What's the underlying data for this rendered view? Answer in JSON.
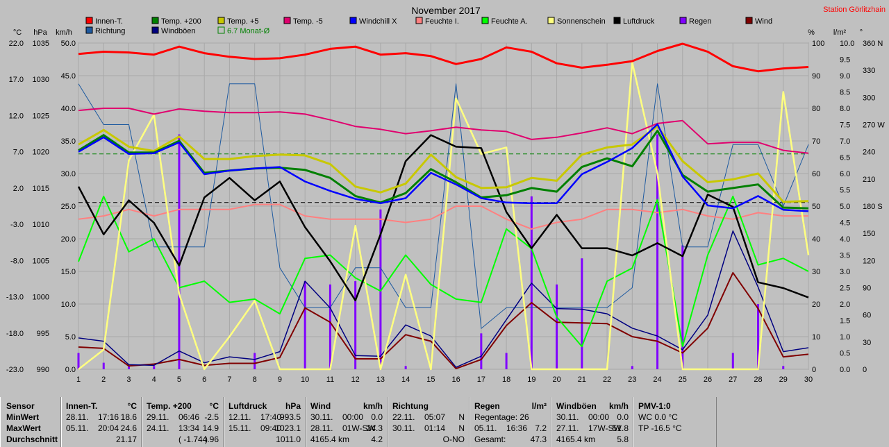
{
  "title": "November 2017",
  "station": "Station Görlitzhain",
  "left_axis_units": [
    "°C",
    "hPa",
    "km/h"
  ],
  "right_axis_units": [
    "%",
    "l/m²",
    "°"
  ],
  "axes": {
    "temp": {
      "min": -23.0,
      "max": 22.0,
      "ticks": [
        "-23.0",
        "-18.0",
        "-13.0",
        "-8.0",
        "-3.0",
        "2.0",
        "7.0",
        "12.0",
        "17.0",
        "22.0"
      ]
    },
    "pressure": {
      "min": 990,
      "max": 1035,
      "ticks": [
        "990",
        "995",
        "1000",
        "1005",
        "1010",
        "1015",
        "1020",
        "1025",
        "1030",
        "1035"
      ]
    },
    "wind": {
      "min": 0,
      "max": 50,
      "ticks": [
        "0.0",
        "5.0",
        "10.0",
        "15.0",
        "20.0",
        "25.0",
        "30.0",
        "35.0",
        "40.0",
        "45.0",
        "50.0"
      ]
    },
    "humidity": {
      "min": 0,
      "max": 100,
      "ticks": [
        "0",
        "10",
        "20",
        "30",
        "40",
        "50",
        "60",
        "70",
        "80",
        "90",
        "100"
      ]
    },
    "rain": {
      "min": 0,
      "max": 10,
      "ticks": [
        "0.0",
        "0.5",
        "1.0",
        "1.5",
        "2.0",
        "2.5",
        "3.0",
        "3.5",
        "4.0",
        "4.5",
        "5.0",
        "5.5",
        "6.0",
        "6.5",
        "7.0",
        "7.5",
        "8.0",
        "8.5",
        "9.0",
        "9.5",
        "10.0"
      ]
    },
    "direction": {
      "min": 0,
      "max": 360,
      "ticks": [
        "0",
        "30",
        "60",
        "90",
        "120",
        "150",
        "180 S",
        "210",
        "240",
        "270 W",
        "300",
        "330",
        "360 N"
      ]
    }
  },
  "legend": [
    {
      "label": "Innen-T.",
      "color": "#ff0000"
    },
    {
      "label": "Temp. +200",
      "color": "#008000"
    },
    {
      "label": "Temp. +5",
      "color": "#c8c800"
    },
    {
      "label": "Temp. -5",
      "color": "#e0006e"
    },
    {
      "label": "Windchill X",
      "color": "#0000ff"
    },
    {
      "label": "Feuchte I.",
      "color": "#ff8080"
    },
    {
      "label": "Feuchte A.",
      "color": "#00ff00"
    },
    {
      "label": "Sonnenschein",
      "color": "#ffff80"
    },
    {
      "label": "Luftdruck",
      "color": "#000000"
    },
    {
      "label": "Regen",
      "color": "#8000ff"
    },
    {
      "label": "Wind",
      "color": "#800000"
    },
    {
      "label": "Richtung",
      "color": "#1e5aa0"
    },
    {
      "label": "Windböen",
      "color": "#000080"
    },
    {
      "label": "6.7 Monat-Ø",
      "color": "#008000"
    }
  ],
  "chart_data": {
    "type": "line",
    "title": "November 2017",
    "x": [
      1,
      2,
      3,
      4,
      5,
      6,
      7,
      8,
      9,
      10,
      11,
      12,
      13,
      14,
      15,
      16,
      17,
      18,
      19,
      20,
      21,
      22,
      23,
      24,
      25,
      26,
      27,
      28,
      29,
      30
    ],
    "x_unit": "Tag",
    "monthly_average_temp": 6.7,
    "series": [
      {
        "name": "Innen-T.",
        "axis": "temp",
        "color": "#ff0000",
        "values": [
          20.5,
          20.8,
          20.7,
          20.4,
          21.5,
          20.6,
          20.1,
          19.8,
          19.9,
          20.4,
          21.2,
          21.5,
          20.4,
          20.6,
          20.2,
          19.1,
          19.8,
          21.4,
          20.8,
          19.2,
          18.6,
          19.0,
          19.5,
          20.9,
          21.9,
          20.8,
          18.8,
          18.1,
          18.5,
          18.7
        ]
      },
      {
        "name": "Temp. +200",
        "axis": "temp",
        "color": "#008000",
        "values": [
          7.2,
          9.3,
          6.9,
          6.9,
          8.5,
          4.1,
          4.4,
          4.7,
          4.8,
          4.5,
          3.4,
          0.9,
          0.0,
          1.3,
          4.6,
          2.8,
          0.7,
          1.0,
          2.0,
          1.5,
          4.9,
          6.1,
          5.0,
          9.9,
          3.8,
          1.5,
          2.0,
          2.5,
          -0.7,
          -0.8
        ]
      },
      {
        "name": "Temp. +5",
        "axis": "temp",
        "color": "#c8c800",
        "values": [
          8.0,
          10.0,
          7.7,
          7.1,
          9.1,
          6.0,
          6.0,
          6.4,
          6.6,
          6.5,
          5.3,
          2.2,
          1.4,
          2.6,
          6.6,
          3.5,
          2.0,
          2.1,
          3.4,
          3.0,
          6.6,
          7.6,
          8.0,
          10.5,
          5.7,
          2.8,
          3.2,
          4.0,
          0.1,
          0.2
        ]
      },
      {
        "name": "Temp. -5",
        "axis": "temp",
        "color": "#e0006e",
        "values": [
          12.7,
          13.0,
          13.0,
          12.2,
          12.9,
          12.6,
          12.4,
          12.4,
          12.5,
          12.2,
          11.4,
          10.5,
          10.1,
          9.5,
          9.9,
          10.4,
          10.0,
          9.8,
          8.7,
          9.0,
          9.6,
          10.3,
          9.5,
          10.9,
          11.3,
          8.1,
          8.3,
          8.3,
          7.2,
          6.8
        ]
      },
      {
        "name": "Windchill X",
        "axis": "temp",
        "color": "#0000ff",
        "values": [
          7.0,
          9.0,
          6.7,
          6.8,
          8.3,
          3.9,
          4.4,
          4.7,
          4.9,
          2.9,
          1.6,
          0.5,
          -0.1,
          0.6,
          4.1,
          2.5,
          0.6,
          0.0,
          -0.1,
          -0.1,
          3.9,
          5.6,
          7.5,
          10.8,
          3.6,
          -0.4,
          -0.8,
          0.9,
          -1.0,
          -1.2
        ]
      },
      {
        "name": "Feuchte I.",
        "axis": "humidity",
        "color": "#ff8080",
        "values": [
          46.0,
          47.0,
          49.0,
          47.0,
          49.0,
          49.0,
          49.0,
          50.5,
          50.5,
          47.0,
          46.0,
          46.0,
          46.0,
          45.0,
          46.0,
          50.0,
          50.0,
          46.0,
          43.0,
          45.0,
          46.0,
          49.0,
          49.0,
          48.0,
          49.0,
          47.0,
          46.0,
          48.0,
          47.0,
          47.0
        ]
      },
      {
        "name": "Feuchte A.",
        "axis": "humidity",
        "color": "#00ff00",
        "values": [
          33.0,
          53.0,
          36.0,
          40.0,
          25.0,
          27.0,
          20.5,
          21.5,
          17.0,
          34.0,
          35.0,
          28.0,
          24.0,
          35.0,
          26.0,
          21.5,
          20.5,
          43.0,
          37.0,
          16.0,
          7.0,
          27.0,
          31.0,
          52.0,
          7.0,
          35.0,
          53.0,
          32.0,
          34.0,
          30.0
        ]
      },
      {
        "name": "Sonnenschein",
        "axis": "rain",
        "color": "#ffff80",
        "values": [
          0.0,
          0.6,
          6.4,
          7.8,
          2.3,
          0.0,
          1.0,
          2.1,
          0.0,
          0.0,
          0.0,
          4.4,
          0.0,
          2.9,
          0.0,
          8.3,
          6.6,
          6.8,
          0.0,
          0.0,
          0.0,
          0.0,
          9.4,
          6.0,
          0.0,
          0.0,
          0.0,
          0.0,
          8.5,
          3.5
        ]
      },
      {
        "name": "Luftdruck",
        "axis": "pressure",
        "color": "#000000",
        "values": [
          1015.2,
          1008.6,
          1013.3,
          1010.2,
          1004.3,
          1013.7,
          1016.4,
          1013.3,
          1015.9,
          1009.6,
          1004.9,
          999.5,
          1008.6,
          1018.7,
          1022.3,
          1020.7,
          1020.5,
          1011.7,
          1006.7,
          1011.3,
          1006.7,
          1006.7,
          1005.7,
          1007.4,
          1005.6,
          1014.1,
          1012.4,
          1002.0,
          1001.2,
          999.9
        ]
      },
      {
        "name": "Regen",
        "axis": "rain",
        "color": "#8000ff",
        "values": [
          0.5,
          0.2,
          0.1,
          0.1,
          7.2,
          0.0,
          0.0,
          0.5,
          0.0,
          2.7,
          2.6,
          2.7,
          4.9,
          0.1,
          0.0,
          0.0,
          1.1,
          0.5,
          5.3,
          2.6,
          3.4,
          0.0,
          0.1,
          7.2,
          3.8,
          0.0,
          0.5,
          2.0,
          0.1,
          0.0
        ]
      },
      {
        "name": "Wind",
        "axis": "wind",
        "color": "#800000",
        "values": [
          3.4,
          3.2,
          0.5,
          0.8,
          1.5,
          0.6,
          0.9,
          0.9,
          1.8,
          9.4,
          7.2,
          1.6,
          1.6,
          5.3,
          4.3,
          0.1,
          1.5,
          6.7,
          10.2,
          7.2,
          7.1,
          7.0,
          5.0,
          4.3,
          2.5,
          6.3,
          14.8,
          9.3,
          1.9,
          2.3
        ]
      },
      {
        "name": "Richtung",
        "axis": "direction",
        "color": "#1e5aa0",
        "values": [
          315,
          270,
          270,
          135,
          135,
          135,
          315,
          315,
          112,
          68,
          68,
          112,
          112,
          68,
          68,
          315,
          45,
          68,
          68,
          68,
          68,
          68,
          90,
          315,
          135,
          135,
          248,
          248,
          180,
          248
        ]
      },
      {
        "name": "Windböen",
        "axis": "wind",
        "color": "#000080",
        "values": [
          4.8,
          4.3,
          0.7,
          0.6,
          2.8,
          1.0,
          1.9,
          1.5,
          2.7,
          13.5,
          9.4,
          2.1,
          2.0,
          6.8,
          5.1,
          0.3,
          2.0,
          7.6,
          13.2,
          9.3,
          9.2,
          8.5,
          6.3,
          5.1,
          3.0,
          8.3,
          21.2,
          12.6,
          2.7,
          3.3
        ]
      }
    ]
  },
  "summary": {
    "sensor": {
      "header": "Sensor",
      "rows": [
        "MinWert",
        "MaxWert",
        "Durchschnitt"
      ]
    },
    "innen": {
      "header": "Innen-T.",
      "unit": "°C",
      "rows": [
        [
          "28.11.",
          "17:16",
          "18.6"
        ],
        [
          "05.11.",
          "20:04",
          "24.6"
        ],
        [
          "",
          "",
          "21.17"
        ]
      ]
    },
    "temp200": {
      "header": "Temp. +200",
      "unit": "°C",
      "rows": [
        [
          "29.11.",
          "06:46",
          "-2.5"
        ],
        [
          "24.11.",
          "13:34",
          "14.9"
        ],
        [
          "",
          "( -1.74 )",
          "4.96"
        ]
      ]
    },
    "luftdruck": {
      "header": "Luftdruck",
      "unit": "hPa",
      "rows": [
        [
          "12.11.",
          "17:40",
          "993.5"
        ],
        [
          "15.11.",
          "09:40",
          "1023.1"
        ],
        [
          "",
          "",
          "1011.0"
        ]
      ]
    },
    "wind": {
      "header": "Wind",
      "unit": "km/h",
      "rows": [
        [
          "30.11.",
          "00:00",
          "0.0"
        ],
        [
          "28.11.",
          "01W-SW",
          "24.3"
        ],
        [
          "4165.4 km",
          "",
          "4.2"
        ]
      ]
    },
    "richtung": {
      "header": "Richtung",
      "unit": "",
      "rows": [
        [
          "22.11.",
          "05:07",
          "N"
        ],
        [
          "30.11.",
          "01:14",
          "N"
        ],
        [
          "",
          "",
          "O-NO"
        ]
      ]
    },
    "regen": {
      "header": "Regen",
      "unit": "l/m²",
      "rows": [
        [
          "Regentage: 26",
          "",
          ""
        ],
        [
          "05.11.",
          "16:36",
          "7.2"
        ],
        [
          "Gesamt:",
          "",
          "47.3"
        ]
      ]
    },
    "boeen": {
      "header": "Windböen",
      "unit": "km/h",
      "rows": [
        [
          "30.11.",
          "00:00",
          "0.0"
        ],
        [
          "27.11.",
          "17W-SW",
          "51.8"
        ],
        [
          "4165.4 km",
          "",
          "5.8"
        ]
      ]
    },
    "pmv": {
      "header": "PMV-1:0",
      "rows": [
        "WC 0.0 °C",
        "TP -16.5 °C"
      ]
    }
  }
}
